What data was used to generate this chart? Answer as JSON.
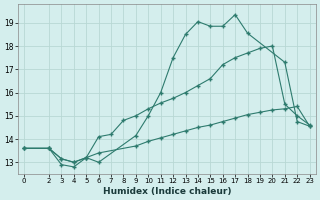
{
  "xlabel": "Humidex (Indice chaleur)",
  "background_color": "#d4eeed",
  "grid_color": "#b8d8d4",
  "line_color": "#2e7b6e",
  "xlim": [
    -0.5,
    23.5
  ],
  "ylim": [
    12.5,
    19.8
  ],
  "yticks": [
    13,
    14,
    15,
    16,
    17,
    18,
    19
  ],
  "xticks": [
    0,
    2,
    3,
    4,
    5,
    6,
    7,
    8,
    9,
    10,
    11,
    12,
    13,
    14,
    15,
    16,
    17,
    18,
    19,
    20,
    21,
    22,
    23
  ],
  "line1_x": [
    0,
    2,
    3,
    4,
    5,
    6,
    9,
    10,
    11,
    12,
    13,
    14,
    15,
    16,
    17,
    18,
    21,
    22,
    23
  ],
  "line1_y": [
    13.6,
    13.6,
    12.9,
    12.8,
    13.2,
    13.0,
    14.15,
    15.0,
    16.0,
    17.5,
    18.5,
    19.05,
    18.85,
    18.85,
    19.35,
    18.55,
    17.3,
    14.75,
    14.55
  ],
  "line2_x": [
    0,
    2,
    3,
    4,
    5,
    6,
    7,
    8,
    9,
    10,
    11,
    12,
    13,
    14,
    15,
    16,
    17,
    18,
    19,
    20,
    21,
    22,
    23
  ],
  "line2_y": [
    13.6,
    13.6,
    13.15,
    13.0,
    13.2,
    14.1,
    14.2,
    14.8,
    15.0,
    15.3,
    15.55,
    15.75,
    16.0,
    16.3,
    16.6,
    17.2,
    17.5,
    17.7,
    17.9,
    18.0,
    15.5,
    15.0,
    14.6
  ],
  "line3_x": [
    0,
    2,
    3,
    4,
    5,
    6,
    9,
    10,
    11,
    12,
    13,
    14,
    15,
    16,
    17,
    18,
    19,
    20,
    21,
    22,
    23
  ],
  "line3_y": [
    13.6,
    13.6,
    13.15,
    13.0,
    13.2,
    13.4,
    13.7,
    13.9,
    14.05,
    14.2,
    14.35,
    14.5,
    14.6,
    14.75,
    14.9,
    15.05,
    15.15,
    15.25,
    15.3,
    15.4,
    14.55
  ]
}
